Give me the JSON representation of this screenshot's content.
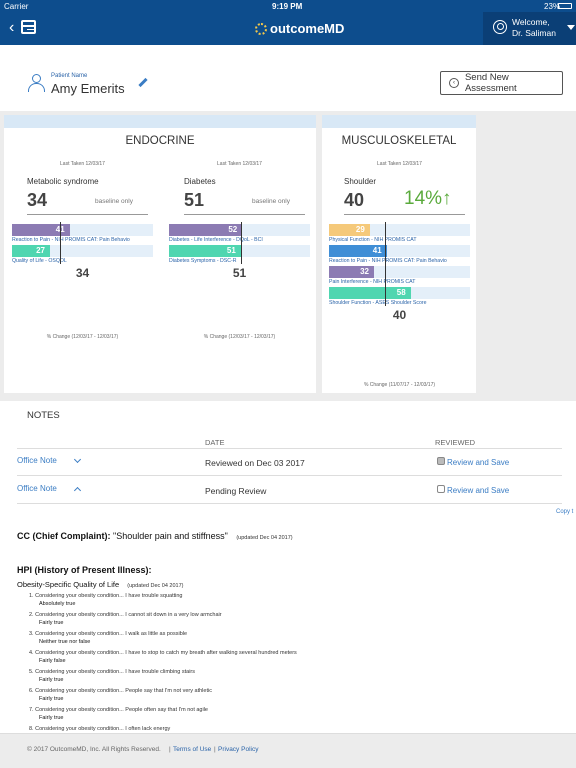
{
  "status_bar": {
    "carrier": "Carrier",
    "time": "9:19 PM",
    "battery": "23%"
  },
  "navbar": {
    "logo_text": "outcomeMD",
    "welcome_line1": "Welcome,",
    "welcome_line2": "Dr. Saliman"
  },
  "patient": {
    "label": "Patient Name",
    "name": "Amy Emerits"
  },
  "send_button": "Send New Assessment",
  "cards": [
    {
      "title": "ENDOCRINE",
      "subcards": [
        {
          "last_taken": "Last Taken 12/03/17",
          "name": "Metabolic syndrome",
          "score": "34",
          "baseline": "baseline only",
          "bars": [
            {
              "value": "41",
              "label": "Reaction to Pain - NIH PROMIS CAT: Pain Behavio",
              "color": "#8c7bb3",
              "fraction": 0.41
            },
            {
              "value": "27",
              "label": "Quality of Life - OSQOL",
              "color": "#4fd6b0",
              "fraction": 0.27
            }
          ],
          "total": "34",
          "pct_change": "% Change (12/03/17 - 12/03/17)"
        },
        {
          "last_taken": "Last Taken 12/03/17",
          "name": "Diabetes",
          "score": "51",
          "baseline": "baseline only",
          "bars": [
            {
              "value": "52",
              "label": "Diabetes - Life Interference - DQoL - BCI",
              "color": "#8c7bb3",
              "fraction": 0.52
            },
            {
              "value": "51",
              "label": "Diabetes Symptoms - DSC-R",
              "color": "#4fd6b0",
              "fraction": 0.51
            }
          ],
          "total": "51",
          "pct_change": "% Change (12/03/17 - 12/03/17)"
        }
      ]
    },
    {
      "title": "MUSCULOSKELETAL",
      "subcards": [
        {
          "last_taken": "Last Taken 12/03/17",
          "name": "Shoulder",
          "score": "40",
          "change": "14%↑",
          "bars": [
            {
              "value": "29",
              "label": "Physical Function - NIH PROMIS CAT",
              "color": "#f5c97a",
              "fraction": 0.29
            },
            {
              "value": "41",
              "label": "Reaction to Pain - NIH PROMIS CAT: Pain Behavio",
              "color": "#3f8ed6",
              "fraction": 0.41
            },
            {
              "value": "32",
              "label": "Pain Interference - NIH PROMIS CAT",
              "color": "#8c7bb3",
              "fraction": 0.32
            },
            {
              "value": "58",
              "label": "Shoulder Function - ASES Shoulder Score",
              "color": "#4fd6b0",
              "fraction": 0.58
            }
          ],
          "total": "40",
          "pct_change": "% Change (11/07/17 - 12/03/17)"
        }
      ]
    }
  ],
  "notes": {
    "title": "NOTES",
    "col_date": "DATE",
    "col_reviewed": "REVIEWED",
    "rows": [
      {
        "name": "Office Note",
        "date": "Reviewed on Dec 03 2017",
        "reviewed": true,
        "action": "Review and Save"
      },
      {
        "name": "Office Note",
        "date": "Pending Review",
        "reviewed": false,
        "action": "Review and Save"
      }
    ],
    "copy_link": "Copy t"
  },
  "cc": {
    "label": "CC (Chief Complaint):",
    "value": "\"Shoulder pain and stiffness\"",
    "updated": "(updated Dec 04 2017)"
  },
  "hpi": {
    "title": "HPI (History of Present Illness):",
    "section": "Obesity-Specific Quality of Life",
    "updated": "(updated Dec 04 2017)",
    "items": [
      {
        "q": "1. Considering your obesity condition... I have trouble squatting",
        "a": "Absolutely true"
      },
      {
        "q": "2. Considering your obesity condition... I cannot sit down in a very low armchair",
        "a": "Fairly true"
      },
      {
        "q": "3. Considering your obesity condition... I walk as little as possible",
        "a": "Neither true nor false"
      },
      {
        "q": "4. Considering your obesity condition... I have to stop to catch my breath after walking several hundred meters",
        "a": "Fairly false"
      },
      {
        "q": "5. Considering your obesity condition... I have trouble climbing stairs",
        "a": "Fairly true"
      },
      {
        "q": "6. Considering your obesity condition... People say that I'm not very athletic",
        "a": "Fairly true"
      },
      {
        "q": "7. Considering your obesity condition... People often say that I'm not agile",
        "a": "Fairly true"
      },
      {
        "q": "8. Considering your obesity condition... I often lack energy",
        "a": ""
      }
    ]
  },
  "footer": {
    "copyright": "© 2017 OutcomeMD, Inc. All Rights Reserved.",
    "sep1": "|",
    "terms": "Terms of Use",
    "sep2": "|",
    "privacy": "Privacy Policy"
  }
}
